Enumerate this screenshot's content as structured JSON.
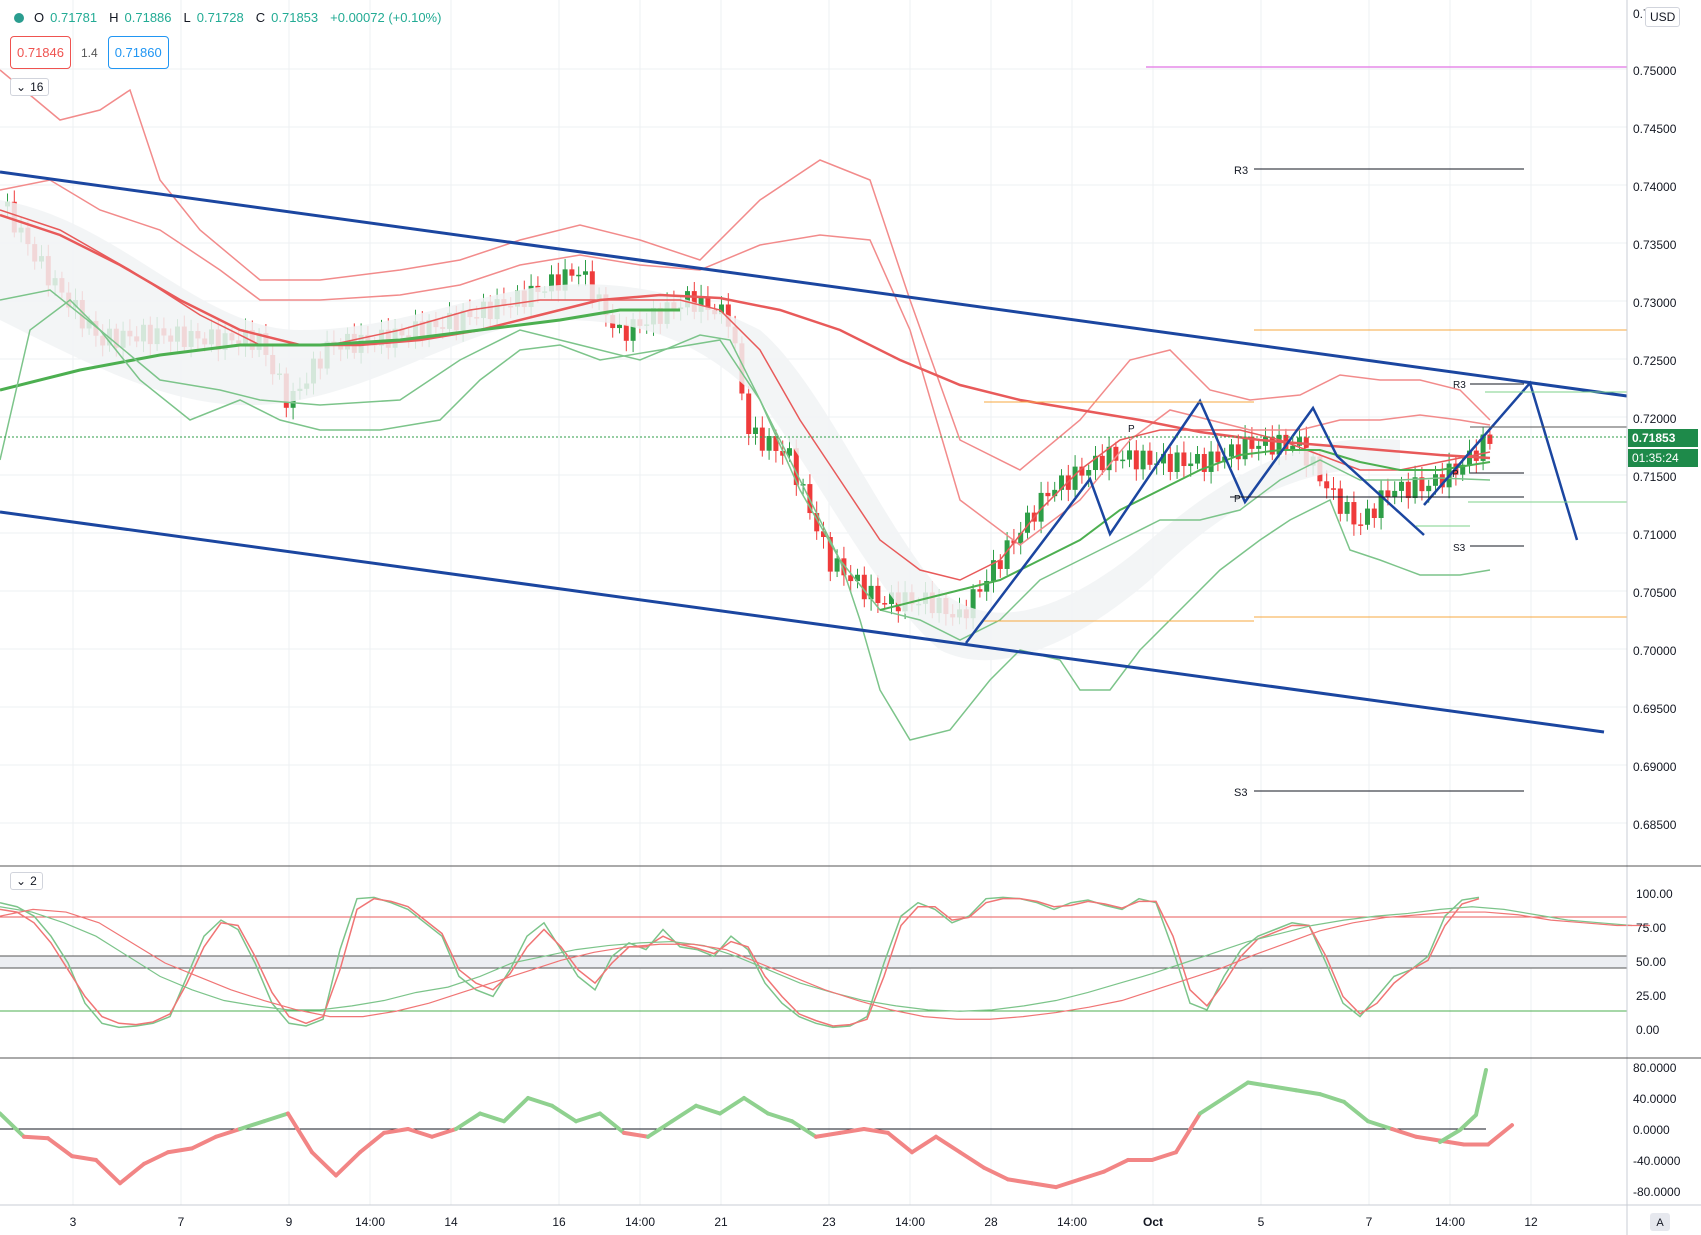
{
  "header": {
    "open_label": "O",
    "open": "0.71781",
    "high_label": "H",
    "high": "0.71886",
    "low_label": "L",
    "low": "0.71728",
    "close_label": "C",
    "close": "0.71853",
    "change": "+0.00072 (+0.10%)"
  },
  "trade": {
    "sell_price": "0.71846",
    "spread": "1.4",
    "buy_price": "0.71860"
  },
  "panels": {
    "main_collapse": "16",
    "osc_collapse": "2"
  },
  "currency": "USD",
  "price_axis": {
    "labels": [
      "0.75000",
      "0.74500",
      "0.74000",
      "0.73500",
      "0.73000",
      "0.72500",
      "0.72000",
      "0.71500",
      "0.71000",
      "0.70500",
      "0.70000",
      "0.69500",
      "0.69000",
      "0.68500"
    ],
    "top_partial": "0.7",
    "last_price": "0.71853",
    "countdown": "01:35:24"
  },
  "osc_axis": {
    "labels": [
      "100.00",
      "75.00",
      "50.00",
      "25.00",
      "0.00"
    ]
  },
  "macd_axis": {
    "labels": [
      "80.0000",
      "40.0000",
      "0.0000",
      "-40.0000",
      "-80.0000"
    ]
  },
  "time_axis": {
    "labels": [
      "3",
      "7",
      "9",
      "14:00",
      "14",
      "16",
      "14:00",
      "21",
      "23",
      "14:00",
      "28",
      "14:00",
      "Oct",
      "5",
      "7",
      "14:00",
      "12"
    ],
    "trailing": "A"
  },
  "pivots": {
    "r3_left": "R3",
    "r3_right": "R3",
    "s3_left": "S3",
    "s3_right": "S3",
    "p_left": "P",
    "p_right": "P",
    "p_small": "P"
  },
  "colors": {
    "up": "#2e9e47",
    "down": "#ef3b3b",
    "channel": "#1b46a0",
    "band_red": "#f28b8b",
    "band_green": "#7cc48a",
    "ma_red": "#e85a5a",
    "ma_green": "#4caf50",
    "orange": "#f7a940",
    "magenta": "#e58ae8",
    "last_price_bg": "#1e8a4a"
  }
}
